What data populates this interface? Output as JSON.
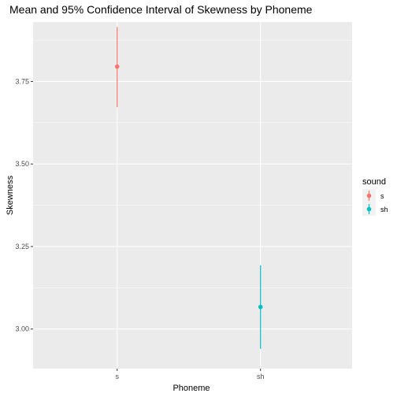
{
  "chart_data": {
    "type": "scatter",
    "title": "Mean and 95% Confidence Interval of Skewness by Phoneme",
    "xlabel": "Phoneme",
    "ylabel": "Skewness",
    "categories": [
      "s",
      "sh"
    ],
    "ylim": [
      2.88,
      3.93
    ],
    "yticks": [
      "3.00",
      "3.25",
      "3.50",
      "3.75"
    ],
    "grid": true,
    "legend": {
      "title": "sound",
      "position": "right",
      "entries": [
        "s",
        "sh"
      ]
    },
    "series": [
      {
        "name": "s",
        "color": "#F8766D",
        "x": "s",
        "mean": 3.795,
        "lower": 3.672,
        "upper": 3.915
      },
      {
        "name": "sh",
        "color": "#00BFC4",
        "x": "sh",
        "mean": 3.067,
        "lower": 2.94,
        "upper": 3.193
      }
    ]
  }
}
